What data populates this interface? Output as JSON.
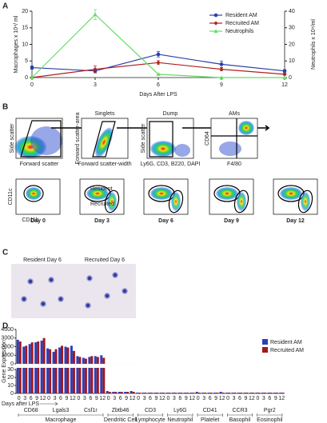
{
  "panel_labels": [
    "A",
    "B",
    "C",
    "D"
  ],
  "chart_data": [
    {
      "type": "line",
      "xlabel": "Days After LPS",
      "ylabel": "Macrophages x 10⁴/ ml",
      "y2label": "Neutrophils x 10⁴/ml",
      "x": [
        0,
        3,
        6,
        9,
        12
      ],
      "xlim": [
        0,
        12
      ],
      "xticks": [
        0,
        3,
        6,
        9,
        12
      ],
      "ylim": [
        0,
        20
      ],
      "yticks": [
        0,
        5,
        10,
        15,
        20
      ],
      "y2lim": [
        0,
        40
      ],
      "y2ticks": [
        0,
        10,
        20,
        30,
        40
      ],
      "legend": "upper right",
      "series": [
        {
          "name": "Resident AM",
          "color": "#2a3fa8",
          "marker": "circle",
          "values": [
            3,
            2,
            7,
            4,
            2
          ],
          "errors": [
            0.5,
            0.6,
            0.8,
            1,
            0.4
          ]
        },
        {
          "name": "Recruited AM",
          "color": "#b02020",
          "marker": "diamond",
          "values": [
            0,
            2.5,
            4.5,
            2.5,
            1
          ],
          "errors": [
            0.2,
            1,
            0.6,
            0.5,
            0.3
          ]
        },
        {
          "name": "Neutrophils",
          "color": "#66dd66",
          "marker": "triangle",
          "axis": "y2",
          "values": [
            0,
            38,
            2,
            0,
            0
          ],
          "errors": [
            0,
            3,
            0.5,
            0,
            0
          ]
        }
      ]
    },
    {
      "type": "bar",
      "ylabel": "Gene Expression",
      "xlabel": "Days after LPS",
      "days": [
        0,
        3,
        6,
        9,
        12
      ],
      "ylim": [
        0,
        4000
      ],
      "yticks": [
        0,
        1000,
        2000,
        3000,
        4000
      ],
      "ylim_lower": [
        0,
        30
      ],
      "yticks_lower": [
        0,
        10,
        20,
        30
      ],
      "groups": [
        {
          "name": "Macrophage",
          "genes": [
            "CD68",
            "Lgals3",
            "Csf1r"
          ]
        },
        {
          "name": "Dendritic Cell",
          "genes": [
            "Zbtb46"
          ]
        },
        {
          "name": "Lymphocyte",
          "genes": [
            "CD3"
          ]
        },
        {
          "name": "Neutrophil",
          "genes": [
            "Ly6G"
          ]
        },
        {
          "name": "Platelet",
          "genes": [
            "CD41"
          ]
        },
        {
          "name": "Basophil",
          "genes": [
            "CCR3"
          ]
        },
        {
          "name": "Eosinophil",
          "genes": [
            "Pgr2"
          ]
        }
      ],
      "series": [
        {
          "name": "Resident AM",
          "color": "#2a3fc0",
          "values": [
            2800,
            2000,
            2300,
            2500,
            2700,
            1800,
            1400,
            1900,
            2000,
            2100,
            900,
            700,
            800,
            900,
            1000,
            3,
            2,
            2,
            2,
            3,
            1,
            1,
            1,
            1,
            1,
            1,
            1,
            1,
            1,
            1,
            2,
            1,
            1,
            1,
            2,
            1,
            1,
            1,
            1,
            1,
            1,
            1,
            1,
            1,
            1
          ]
        },
        {
          "name": "Recruited AM",
          "color": "#a01818",
          "values": [
            2600,
            2100,
            2500,
            2600,
            3000,
            1700,
            1700,
            2100,
            1900,
            1500,
            800,
            600,
            900,
            800,
            700,
            2,
            2,
            2,
            2,
            2,
            1,
            1,
            1,
            1,
            1,
            1,
            1,
            1,
            1,
            1,
            1,
            1,
            1,
            1,
            1,
            1,
            1,
            1,
            1,
            1,
            1,
            1,
            1,
            1,
            1
          ]
        }
      ]
    }
  ],
  "flow": {
    "gates": [
      {
        "title": "",
        "x_label": "Forward scatter",
        "y_label": "Side scatter"
      },
      {
        "title": "Singlets",
        "x_label": "Forward scatter-width",
        "y_label": "Forward scatter-area"
      },
      {
        "title": "Dump",
        "x_label": "Ly6G, CD3, B220, DAPI",
        "y_label": "Side scatter"
      },
      {
        "title": "AMs",
        "x_label": "F4/80",
        "y_label": "CD64"
      }
    ],
    "y_axis": "CD11c",
    "x_axis": "CD11b",
    "resident": "Resident",
    "recruited": "Recruited",
    "days": [
      "Day 0",
      "Day 3",
      "Day 6",
      "Day 9",
      "Day 12"
    ]
  },
  "cytospin": [
    "Resident Day 6",
    "Recruited Day 6"
  ]
}
